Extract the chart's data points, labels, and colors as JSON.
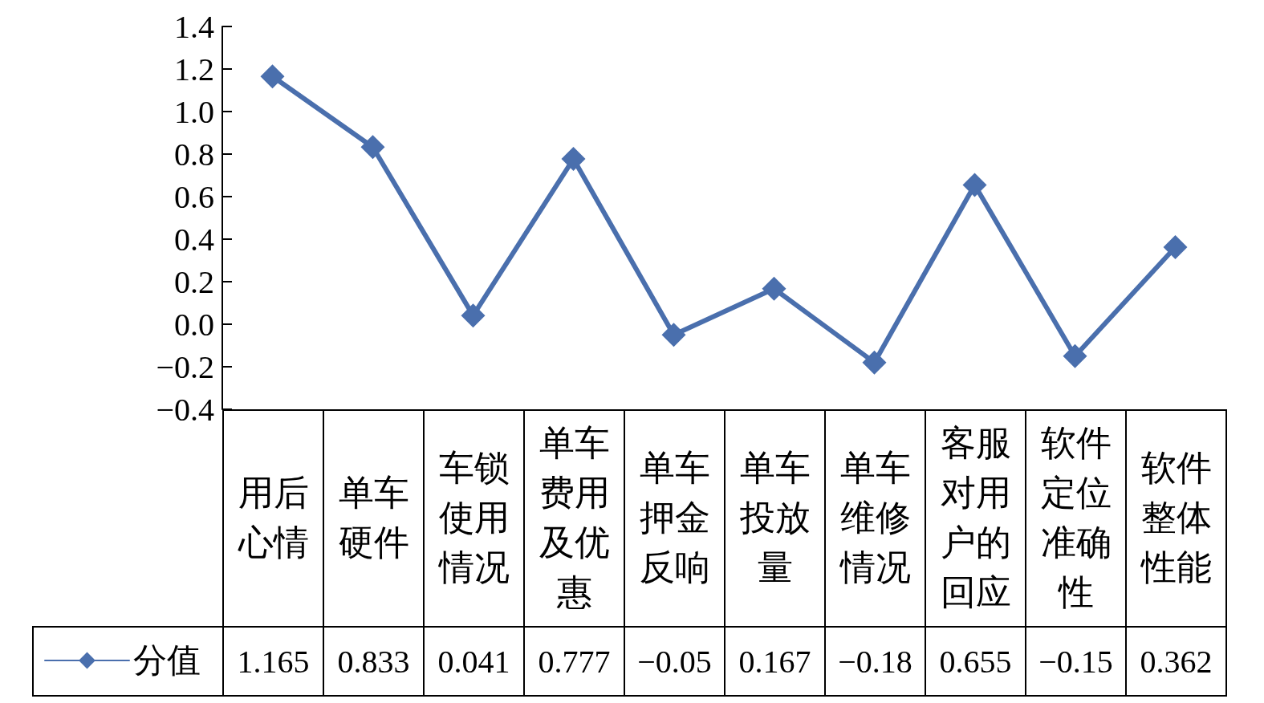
{
  "chart_data": {
    "type": "line",
    "categories": [
      "用后心情",
      "单车硬件",
      "车锁使用情况",
      "单车费用及优惠",
      "单车押金反响",
      "单车投放量",
      "单车维修情况",
      "客服对用户的回应",
      "软件定位准确性",
      "软件整体性能"
    ],
    "series": [
      {
        "name": "分值",
        "color": "#4a6fad",
        "values": [
          1.165,
          0.833,
          0.041,
          0.777,
          -0.05,
          0.167,
          -0.18,
          0.655,
          -0.15,
          0.362
        ],
        "value_labels": [
          "1.165",
          "0.833",
          "0.041",
          "0.777",
          "−0.05",
          "0.167",
          "−0.18",
          "0.655",
          "−0.15",
          "0.362"
        ]
      }
    ],
    "ylim": [
      -0.4,
      1.4
    ],
    "yticks": [
      {
        "value": -0.4,
        "label": "−0.4"
      },
      {
        "value": -0.2,
        "label": "−0.2"
      },
      {
        "value": 0,
        "label": "0.0"
      },
      0.2,
      0.4,
      0.6,
      0.8,
      {
        "value": 1,
        "label": "1.0"
      },
      1.2,
      1.4
    ],
    "grid": false,
    "legend": "bottom left",
    "marker": "diamond",
    "line_style": "solid"
  }
}
